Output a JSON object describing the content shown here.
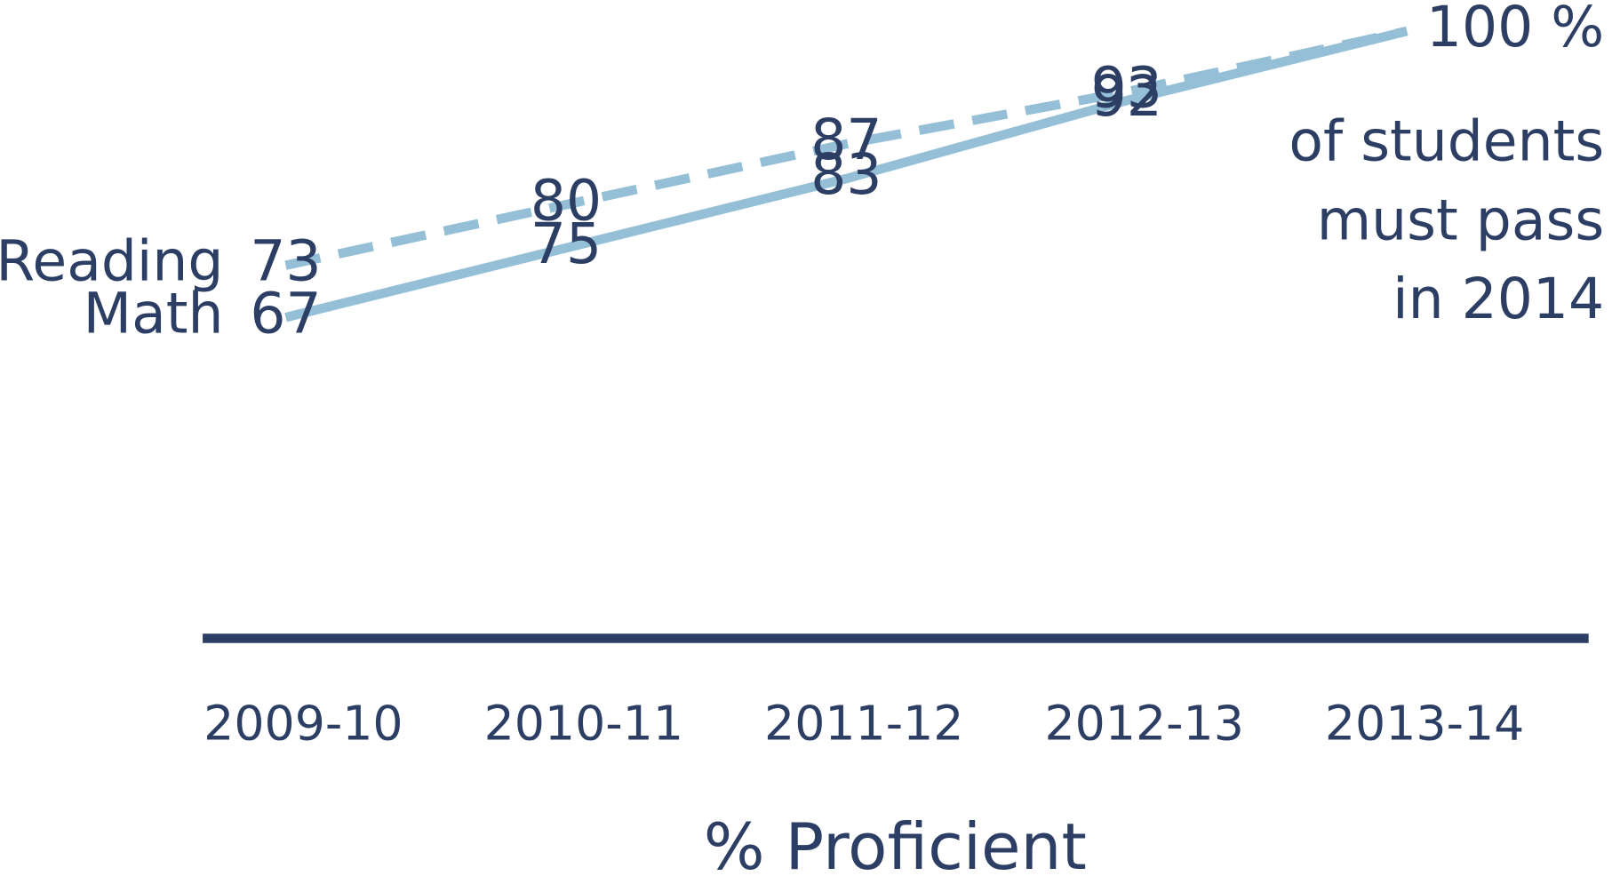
{
  "chart_data": {
    "type": "line",
    "categories": [
      "2009-10",
      "2010-11",
      "2011-12",
      "2012-13",
      "2013-14"
    ],
    "series": [
      {
        "name": "Reading",
        "color": "#94bfd6",
        "linestyle": "dashed",
        "values": [
          73,
          80,
          87,
          93,
          100
        ],
        "value_labels": [
          "73",
          "80",
          "87",
          "93",
          "100 %"
        ]
      },
      {
        "name": "Math",
        "color": "#94bfd6",
        "linestyle": "solid",
        "values": [
          67,
          75,
          83,
          92,
          100
        ],
        "value_labels": [
          "67",
          "75",
          "83",
          "92",
          null
        ]
      }
    ],
    "ylim": [
      30,
      100
    ],
    "annotation": [
      "of students",
      "must pass",
      "in 2014"
    ],
    "xlabel": "% Proficient",
    "axis_color": "#2c3e63"
  }
}
